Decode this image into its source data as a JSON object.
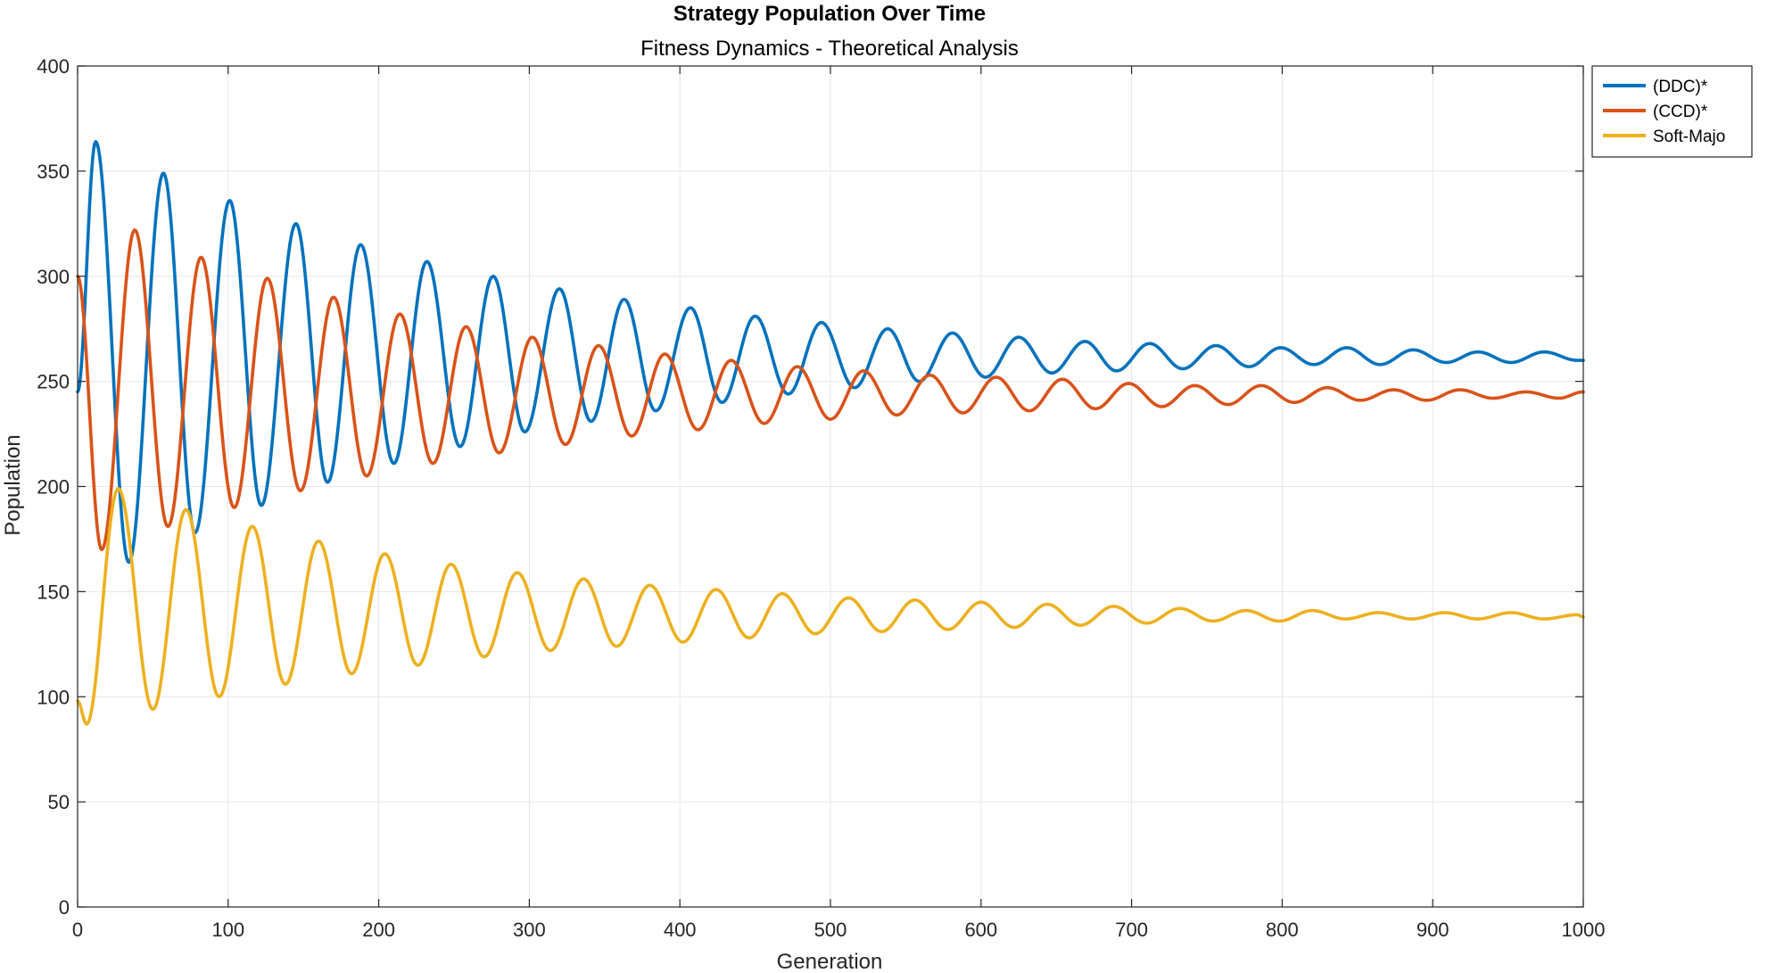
{
  "chart_data": {
    "type": "line",
    "title": "Strategy Population Over Time",
    "subtitle": "Fitness Dynamics - Theoretical Analysis",
    "xlabel": "Generation",
    "ylabel": "Population",
    "xlim": [
      0,
      1000
    ],
    "ylim": [
      0,
      400
    ],
    "xticks": [
      0,
      100,
      200,
      300,
      400,
      500,
      600,
      700,
      800,
      900,
      1000
    ],
    "yticks": [
      0,
      50,
      100,
      150,
      200,
      250,
      300,
      350,
      400
    ],
    "grid": true,
    "legend_position": "outside-top-right",
    "series": [
      {
        "name": "(DDC)*",
        "color": "#0072BD",
        "points": [
          [
            0,
            245
          ],
          [
            12,
            364
          ],
          [
            34,
            164
          ],
          [
            57,
            349
          ],
          [
            78,
            178
          ],
          [
            101,
            336
          ],
          [
            122,
            191
          ],
          [
            145,
            325
          ],
          [
            166,
            202
          ],
          [
            188,
            315
          ],
          [
            210,
            211
          ],
          [
            232,
            307
          ],
          [
            254,
            219
          ],
          [
            276,
            300
          ],
          [
            297,
            226
          ],
          [
            320,
            294
          ],
          [
            341,
            231
          ],
          [
            363,
            289
          ],
          [
            384,
            236
          ],
          [
            407,
            285
          ],
          [
            428,
            240
          ],
          [
            450,
            281
          ],
          [
            472,
            244
          ],
          [
            494,
            278
          ],
          [
            516,
            247
          ],
          [
            538,
            275
          ],
          [
            559,
            250
          ],
          [
            581,
            273
          ],
          [
            603,
            252
          ],
          [
            625,
            271
          ],
          [
            647,
            254
          ],
          [
            669,
            269
          ],
          [
            690,
            255
          ],
          [
            712,
            268
          ],
          [
            734,
            256
          ],
          [
            756,
            267
          ],
          [
            778,
            257
          ],
          [
            799,
            266
          ],
          [
            821,
            258
          ],
          [
            843,
            266
          ],
          [
            865,
            258
          ],
          [
            887,
            265
          ],
          [
            909,
            259
          ],
          [
            930,
            264
          ],
          [
            952,
            259
          ],
          [
            974,
            264
          ],
          [
            996,
            260
          ],
          [
            1000,
            260
          ]
        ]
      },
      {
        "name": "(CCD)*",
        "color": "#D95319",
        "points": [
          [
            0,
            300
          ],
          [
            16,
            170
          ],
          [
            38,
            322
          ],
          [
            60,
            181
          ],
          [
            82,
            309
          ],
          [
            104,
            190
          ],
          [
            126,
            299
          ],
          [
            148,
            198
          ],
          [
            170,
            290
          ],
          [
            192,
            205
          ],
          [
            214,
            282
          ],
          [
            236,
            211
          ],
          [
            258,
            276
          ],
          [
            280,
            216
          ],
          [
            302,
            271
          ],
          [
            324,
            220
          ],
          [
            346,
            267
          ],
          [
            368,
            224
          ],
          [
            390,
            263
          ],
          [
            412,
            227
          ],
          [
            434,
            260
          ],
          [
            456,
            230
          ],
          [
            478,
            257
          ],
          [
            500,
            232
          ],
          [
            522,
            255
          ],
          [
            544,
            234
          ],
          [
            566,
            253
          ],
          [
            588,
            235
          ],
          [
            610,
            252
          ],
          [
            632,
            236
          ],
          [
            654,
            251
          ],
          [
            676,
            237
          ],
          [
            698,
            249
          ],
          [
            720,
            238
          ],
          [
            742,
            248
          ],
          [
            764,
            239
          ],
          [
            786,
            248
          ],
          [
            808,
            240
          ],
          [
            830,
            247
          ],
          [
            852,
            241
          ],
          [
            874,
            246
          ],
          [
            896,
            241
          ],
          [
            918,
            246
          ],
          [
            940,
            242
          ],
          [
            962,
            245
          ],
          [
            984,
            242
          ],
          [
            1000,
            245
          ]
        ]
      },
      {
        "name": "Soft-Majo",
        "color": "#EDB120",
        "points": [
          [
            0,
            98
          ],
          [
            6,
            87
          ],
          [
            27,
            199
          ],
          [
            50,
            94
          ],
          [
            72,
            189
          ],
          [
            94,
            100
          ],
          [
            116,
            181
          ],
          [
            138,
            106
          ],
          [
            160,
            174
          ],
          [
            182,
            111
          ],
          [
            204,
            168
          ],
          [
            226,
            115
          ],
          [
            248,
            163
          ],
          [
            270,
            119
          ],
          [
            292,
            159
          ],
          [
            314,
            122
          ],
          [
            336,
            156
          ],
          [
            358,
            124
          ],
          [
            380,
            153
          ],
          [
            402,
            126
          ],
          [
            424,
            151
          ],
          [
            446,
            128
          ],
          [
            468,
            149
          ],
          [
            490,
            130
          ],
          [
            512,
            147
          ],
          [
            534,
            131
          ],
          [
            556,
            146
          ],
          [
            578,
            132
          ],
          [
            600,
            145
          ],
          [
            622,
            133
          ],
          [
            644,
            144
          ],
          [
            666,
            134
          ],
          [
            688,
            143
          ],
          [
            710,
            135
          ],
          [
            732,
            142
          ],
          [
            754,
            136
          ],
          [
            776,
            141
          ],
          [
            798,
            136
          ],
          [
            820,
            141
          ],
          [
            842,
            137
          ],
          [
            864,
            140
          ],
          [
            886,
            137
          ],
          [
            908,
            140
          ],
          [
            930,
            137
          ],
          [
            952,
            140
          ],
          [
            974,
            137
          ],
          [
            996,
            139
          ],
          [
            1000,
            138
          ]
        ]
      }
    ]
  }
}
